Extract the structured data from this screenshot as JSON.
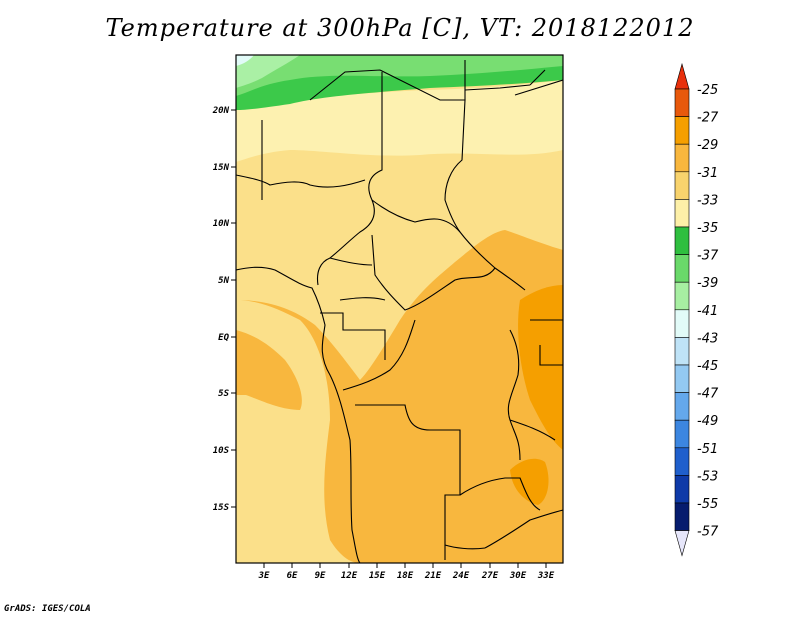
{
  "title": "Temperature at 300hPa [C], VT: 2018122012",
  "credit": "GrADS: IGES/COLA",
  "map": {
    "lat_ticks": [
      "20N",
      "15N",
      "10N",
      "5N",
      "EQ",
      "5S",
      "10S",
      "15S"
    ],
    "lon_ticks": [
      "3E",
      "6E",
      "9E",
      "12E",
      "15E",
      "18E",
      "21E",
      "24E",
      "27E",
      "30E",
      "33E"
    ]
  },
  "colorbar": {
    "labels": [
      "-25",
      "-27",
      "-29",
      "-31",
      "-33",
      "-35",
      "-37",
      "-39",
      "-41",
      "-43",
      "-45",
      "-47",
      "-49",
      "-51",
      "-53",
      "-55",
      "-57"
    ],
    "colors": [
      "#f0e68c",
      "#d2691e",
      "#e8590c",
      "#f59f00",
      "#f8b73e",
      "#f8d36d",
      "#fdf0a8",
      "#2fbf3f",
      "#6ad96a",
      "#a7efa2",
      "#e2fbf8",
      "#bfe3f7",
      "#93c9f2",
      "#64a8ec",
      "#3c86e0",
      "#1f5fcc",
      "#0e3aa8",
      "#061c6e",
      "#e6e6fa"
    ]
  }
}
